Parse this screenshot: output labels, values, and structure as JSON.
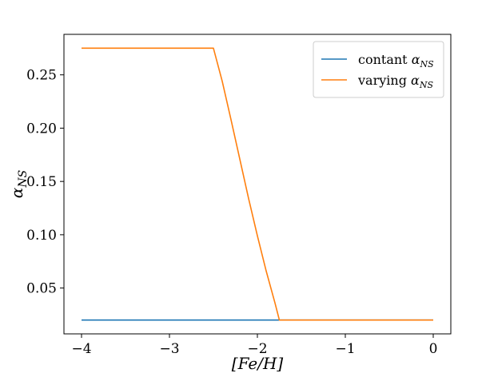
{
  "chart_data": {
    "type": "line",
    "title": "",
    "xlabel": "[Fe/H]",
    "ylabel": "α_NS",
    "xlim": [
      -4.2,
      0.2
    ],
    "ylim": [
      0.007,
      0.288
    ],
    "xticks": [
      -4,
      -3,
      -2,
      -1,
      0
    ],
    "xtick_labels": [
      "−4",
      "−3",
      "−2",
      "−1",
      "0"
    ],
    "yticks": [
      0.05,
      0.1,
      0.15,
      0.2,
      0.25
    ],
    "ytick_labels": [
      "0.05",
      "0.10",
      "0.15",
      "0.20",
      "0.25"
    ],
    "grid": false,
    "legend": {
      "position": "top-right"
    },
    "series": [
      {
        "name": "contant α_NS",
        "legend_text": "contant ",
        "legend_symbol": "α",
        "legend_sub": "NS",
        "color": "#1f77b4",
        "x": [
          -4.0,
          0.0
        ],
        "y": [
          0.02,
          0.02
        ]
      },
      {
        "name": "varying α_NS",
        "legend_text": "varying ",
        "legend_symbol": "α",
        "legend_sub": "NS",
        "color": "#ff7f0e",
        "x": [
          -4.0,
          -2.5,
          -2.4,
          -2.3,
          -2.2,
          -2.1,
          -2.0,
          -1.9,
          -1.8,
          -1.75,
          0.0
        ],
        "y": [
          0.275,
          0.275,
          0.244,
          0.208,
          0.171,
          0.134,
          0.099,
          0.066,
          0.036,
          0.02,
          0.02
        ]
      }
    ]
  }
}
